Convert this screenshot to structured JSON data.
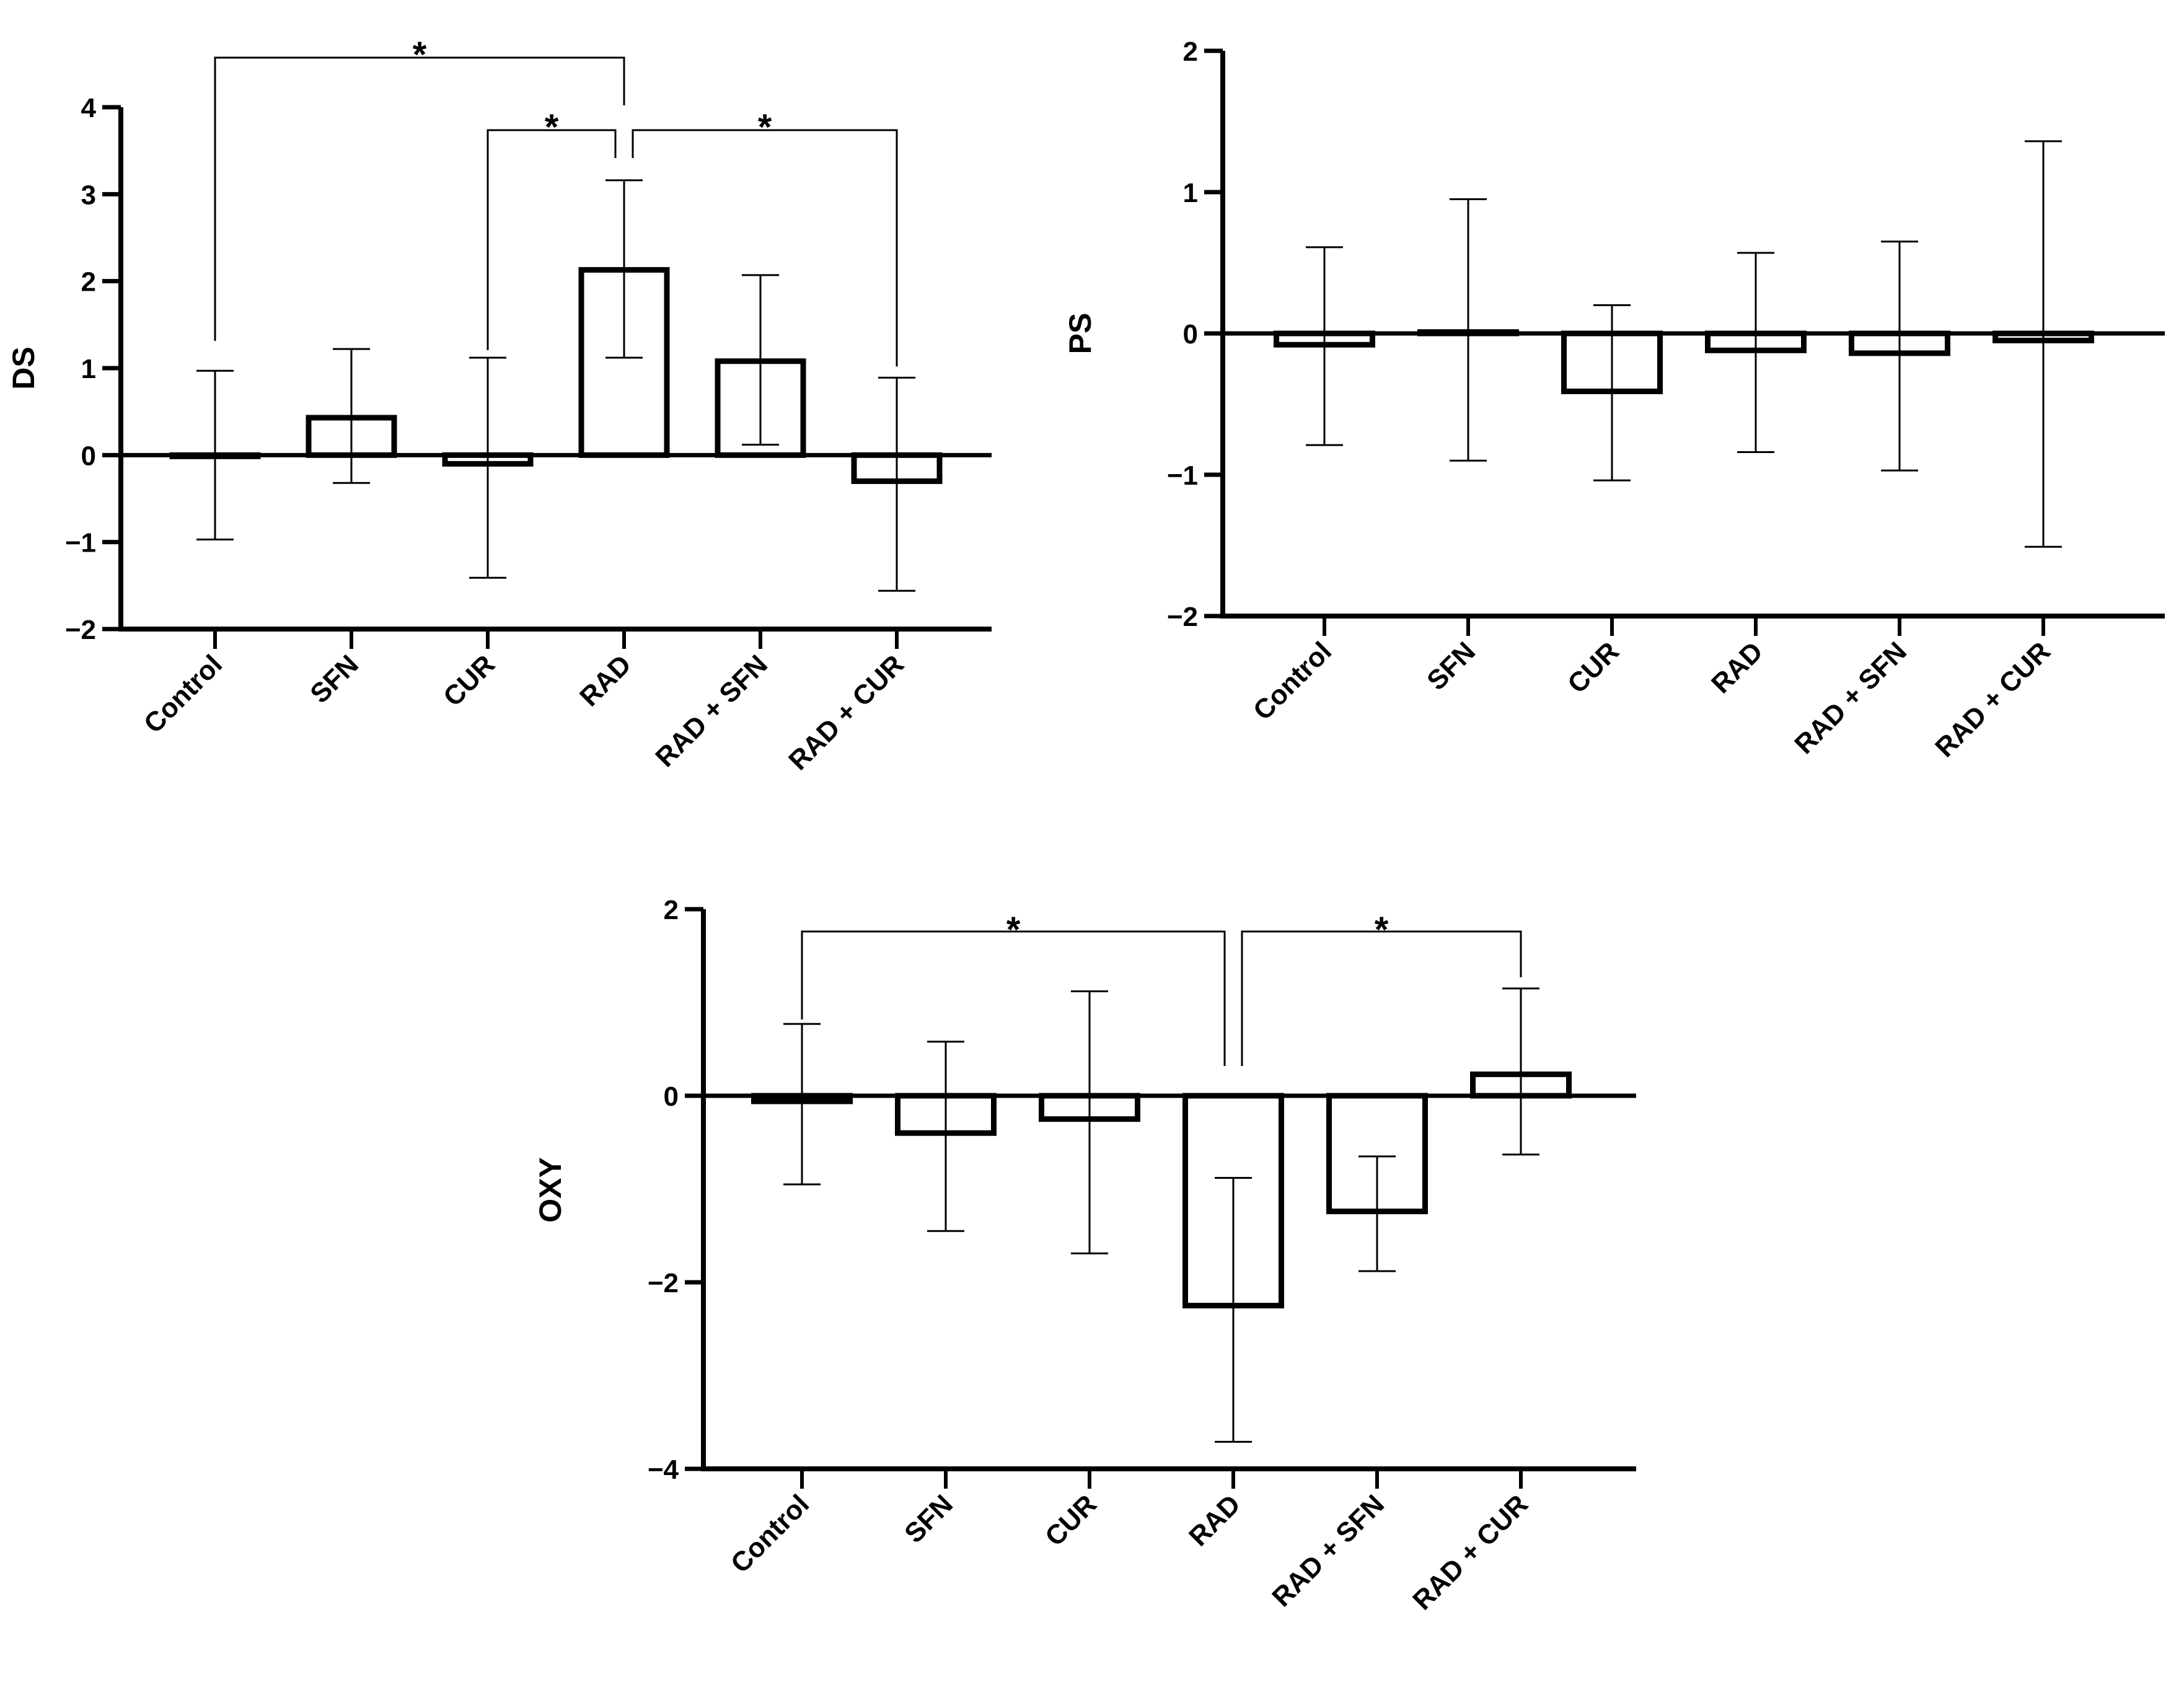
{
  "chart_data": [
    {
      "type": "bar",
      "ylabel": "DS",
      "categories": [
        "Control",
        "SFN",
        "CUR",
        "RAD",
        "RAD + SFN",
        "RAD + CUR"
      ],
      "values": [
        0.0,
        0.43,
        -0.1,
        2.13,
        1.08,
        -0.3
      ],
      "error_low": [
        -0.97,
        -0.32,
        -1.41,
        1.12,
        0.12,
        -1.56
      ],
      "error_high": [
        0.97,
        1.22,
        1.12,
        3.16,
        2.07,
        0.89
      ],
      "yticks": [
        4,
        3,
        2,
        1,
        0,
        -1,
        -2
      ],
      "ytick_labels": [
        "4",
        "3",
        "2",
        "1",
        "0",
        "−1",
        "−2"
      ],
      "ylim": [
        -2,
        4
      ],
      "significance": [
        {
          "from": "Control",
          "to": "RAD",
          "label": "*"
        },
        {
          "from": "CUR",
          "to": "RAD",
          "label": "*"
        },
        {
          "from": "RAD",
          "to": "RAD + CUR",
          "label": "*"
        }
      ]
    },
    {
      "type": "bar",
      "ylabel": "PS",
      "categories": [
        "Control",
        "SFN",
        "CUR",
        "RAD",
        "RAD + SFN",
        "RAD + CUR"
      ],
      "values": [
        -0.08,
        0.01,
        -0.41,
        -0.12,
        -0.14,
        -0.05
      ],
      "error_low": [
        -0.79,
        -0.9,
        -1.04,
        -0.84,
        -0.97,
        -1.51
      ],
      "error_high": [
        0.61,
        0.95,
        0.2,
        0.57,
        0.65,
        1.36
      ],
      "yticks": [
        2,
        1,
        0,
        -1,
        -2
      ],
      "ytick_labels": [
        "2",
        "1",
        "0",
        "−1",
        "−2"
      ],
      "ylim": [
        -2,
        2
      ],
      "significance": []
    },
    {
      "type": "bar",
      "ylabel": "OXY",
      "categories": [
        "Control",
        "SFN",
        "CUR",
        "RAD",
        "RAD + SFN",
        "RAD + CUR"
      ],
      "values": [
        -0.06,
        -0.4,
        -0.25,
        -2.25,
        -1.24,
        0.23
      ],
      "error_low": [
        -0.95,
        -1.45,
        -1.69,
        -3.71,
        -1.88,
        -0.63
      ],
      "error_high": [
        0.77,
        0.58,
        1.12,
        -0.88,
        -0.65,
        1.15
      ],
      "yticks": [
        2,
        0,
        -2,
        -4
      ],
      "ytick_labels": [
        "2",
        "0",
        "−2",
        "−4"
      ],
      "ylim": [
        -4,
        2
      ],
      "significance": [
        {
          "from": "Control",
          "to": "RAD",
          "label": "*"
        },
        {
          "from": "RAD",
          "to": "RAD + CUR",
          "label": "*"
        }
      ]
    }
  ]
}
